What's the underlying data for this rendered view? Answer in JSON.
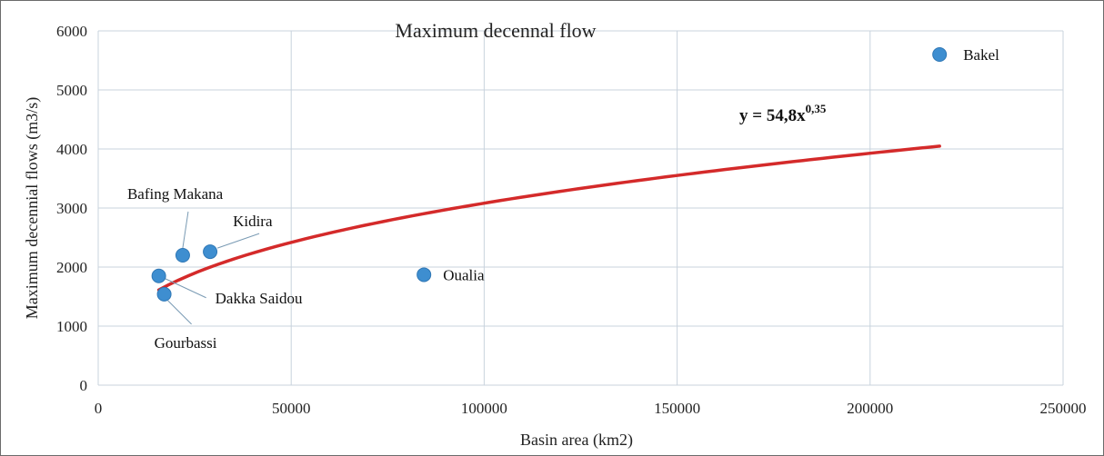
{
  "chart_data": {
    "type": "scatter",
    "title": "Maximum  decennal flow",
    "xlabel": "Basin area (km2)",
    "ylabel": "Maximum decennial flows (m3/s)",
    "xlim": [
      0,
      250000
    ],
    "ylim": [
      0,
      6000
    ],
    "x_ticks": [
      "0",
      "50000",
      "100000",
      "150000",
      "200000",
      "250000"
    ],
    "y_ticks": [
      "0",
      "1000",
      "2000",
      "3000",
      "4000",
      "5000",
      "6000"
    ],
    "grid": true,
    "point_color": "#3e8ed0",
    "trend_color": "#d42a2a",
    "points": [
      {
        "name": "Bafing Makana",
        "x": 21900,
        "y": 2200
      },
      {
        "name": "Kidira",
        "x": 29000,
        "y": 2260
      },
      {
        "name": "Dakka Saidou",
        "x": 15700,
        "y": 1850
      },
      {
        "name": "Gourbassi",
        "x": 17100,
        "y": 1540
      },
      {
        "name": "Oualia",
        "x": 84400,
        "y": 1870
      },
      {
        "name": "Bakel",
        "x": 218000,
        "y": 5600
      }
    ],
    "trendline": {
      "type": "power",
      "coef": 54.8,
      "exponent": 0.35,
      "x_start": 15700,
      "x_end": 218000,
      "equation_base": "y = 54,8x",
      "equation_exp": "0,35"
    }
  }
}
